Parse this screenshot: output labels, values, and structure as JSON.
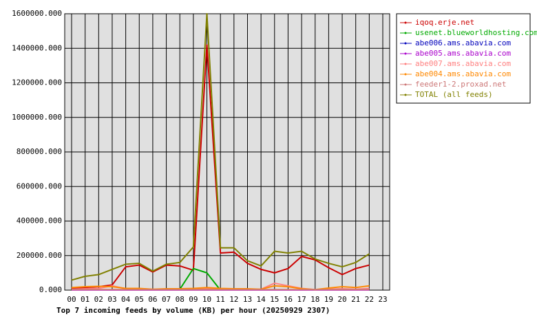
{
  "chart_data": {
    "type": "line",
    "title": "Top 7 incoming feeds by volume (KB) per hour (20250929 2307)",
    "categories": [
      "00",
      "01",
      "02",
      "03",
      "04",
      "05",
      "06",
      "07",
      "08",
      "09",
      "10",
      "11",
      "12",
      "13",
      "14",
      "15",
      "16",
      "17",
      "18",
      "19",
      "20",
      "21",
      "22",
      "23"
    ],
    "ylim": [
      0,
      1600000
    ],
    "yticks": [
      {
        "value": 0,
        "label": "0.000"
      },
      {
        "value": 200000,
        "label": "200000.000"
      },
      {
        "value": 400000,
        "label": "400000.000"
      },
      {
        "value": 600000,
        "label": "600000.000"
      },
      {
        "value": 800000,
        "label": "800000.000"
      },
      {
        "value": 1000000,
        "label": "1000000.000"
      },
      {
        "value": 1200000,
        "label": "1200000.000"
      },
      {
        "value": 1400000,
        "label": "1400000.000"
      },
      {
        "value": 1600000,
        "label": "1600000.000"
      }
    ],
    "grid": true,
    "legend": "right",
    "series": [
      {
        "name": "iqoq.erje.net",
        "color": "#cc0000",
        "values": [
          10000,
          15000,
          20000,
          30000,
          135000,
          145000,
          105000,
          145000,
          140000,
          115000,
          1420000,
          215000,
          220000,
          155000,
          120000,
          100000,
          125000,
          195000,
          175000,
          130000,
          90000,
          125000,
          145000,
          null
        ]
      },
      {
        "name": "usenet.blueworldhosting.com",
        "color": "#00aa00",
        "values": [
          null,
          null,
          null,
          null,
          null,
          null,
          null,
          null,
          5000,
          125000,
          100000,
          0,
          null,
          null,
          null,
          null,
          null,
          null,
          null,
          null,
          null,
          null,
          null,
          null
        ]
      },
      {
        "name": "abe006.ams.abavia.com",
        "color": "#0000bb",
        "values": [
          2000,
          2000,
          2000,
          2000,
          2000,
          2000,
          2000,
          2000,
          2000,
          2000,
          2000,
          2000,
          2000,
          2000,
          2000,
          2000,
          2000,
          2000,
          2000,
          2000,
          2000,
          2000,
          2000,
          null
        ]
      },
      {
        "name": "abe005.ams.abavia.com",
        "color": "#aa00cc",
        "values": [
          1000,
          1000,
          1000,
          1000,
          1000,
          1000,
          1000,
          1000,
          1000,
          1000,
          1000,
          1000,
          1000,
          1000,
          1000,
          1000,
          1000,
          1000,
          1000,
          1000,
          1000,
          1000,
          1000,
          null
        ]
      },
      {
        "name": "abe007.ams.abavia.com",
        "color": "#ff8080",
        "values": [
          5000,
          8000,
          10000,
          25000,
          8000,
          8000,
          5000,
          5000,
          5000,
          5000,
          8000,
          8000,
          8000,
          5000,
          5000,
          40000,
          25000,
          10000,
          3000,
          5000,
          8000,
          5000,
          10000,
          null
        ]
      },
      {
        "name": "abe004.ams.abavia.com",
        "color": "#ff8800",
        "values": [
          15000,
          20000,
          22000,
          20000,
          10000,
          10000,
          5000,
          8000,
          8000,
          10000,
          15000,
          10000,
          8000,
          8000,
          5000,
          25000,
          20000,
          8000,
          3000,
          12000,
          20000,
          15000,
          25000,
          null
        ]
      },
      {
        "name": "feeder1-2.proxad.net",
        "color": "#cc7777",
        "values": [
          3000,
          3000,
          3000,
          3000,
          3000,
          3000,
          3000,
          3000,
          3000,
          3000,
          3000,
          3000,
          3000,
          3000,
          3000,
          3000,
          3000,
          3000,
          3000,
          3000,
          3000,
          3000,
          3000,
          null
        ]
      },
      {
        "name": "TOTAL (all feeds)",
        "color": "#808000",
        "values": [
          58000,
          80000,
          90000,
          120000,
          150000,
          155000,
          110000,
          150000,
          160000,
          250000,
          1600000,
          245000,
          245000,
          170000,
          140000,
          225000,
          215000,
          225000,
          180000,
          155000,
          135000,
          160000,
          210000,
          null
        ]
      }
    ]
  }
}
